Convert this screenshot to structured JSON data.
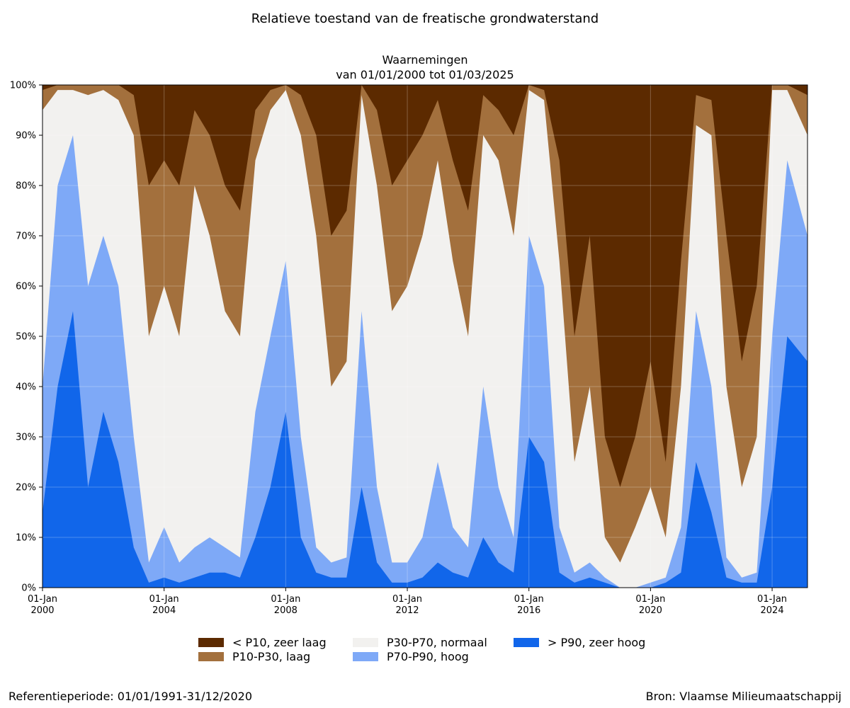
{
  "title": "Relatieve toestand van de freatische grondwaterstand",
  "subtitle_line1": "Waarnemingen",
  "subtitle_line2": "van 01/01/2000 tot 01/03/2025",
  "footer": {
    "reference": "Referentieperiode: 01/01/1991-31/12/2020",
    "source": "Bron: Vlaamse Milieumaatschappij"
  },
  "legend": [
    {
      "label": "< P10, zeer laag",
      "color": "#5c2a00"
    },
    {
      "label": "P10-P30, laag",
      "color": "#a3703d"
    },
    {
      "label": "P30-P70, normaal",
      "color": "#f2f1ef"
    },
    {
      "label": "P70-P90, hoog",
      "color": "#7ea9f7"
    },
    {
      "label": "> P90, zeer hoog",
      "color": "#1166ea"
    }
  ],
  "chart_data": {
    "type": "area",
    "stacked": true,
    "x_range": [
      "2000-01-01",
      "2025-03-01"
    ],
    "ylim": [
      0,
      100
    ],
    "y_unit": "%",
    "y_ticks": [
      "0%",
      "10%",
      "20%",
      "30%",
      "40%",
      "50%",
      "60%",
      "70%",
      "80%",
      "90%",
      "100%"
    ],
    "x_ticks": [
      {
        "date": "2000-01-01",
        "line1": "01-Jan",
        "line2": "2000"
      },
      {
        "date": "2004-01-01",
        "line1": "01-Jan",
        "line2": "2004"
      },
      {
        "date": "2008-01-01",
        "line1": "01-Jan",
        "line2": "2008"
      },
      {
        "date": "2012-01-01",
        "line1": "01-Jan",
        "line2": "2012"
      },
      {
        "date": "2016-01-01",
        "line1": "01-Jan",
        "line2": "2016"
      },
      {
        "date": "2020-01-01",
        "line1": "01-Jan",
        "line2": "2020"
      },
      {
        "date": "2024-01-01",
        "line1": "01-Jan",
        "line2": "2024"
      }
    ],
    "grid": true,
    "legend_position": "bottom",
    "series_order": [
      "> P90, zeer hoog",
      "P70-P90, hoog",
      "P30-P70, normaal",
      "P10-P30, laag",
      "< P10, zeer laag"
    ],
    "cumulative_boundaries_note": "values are cumulative upper boundaries (%) of the '> P90' band, the '> P90'+'P70-P90' band, and the bottom of the 'P10-P30' band and the bottom of the '< P10' band",
    "dates": [
      "2000-01-01",
      "2000-07-01",
      "2001-01-01",
      "2001-07-01",
      "2002-01-01",
      "2002-07-01",
      "2003-01-01",
      "2003-07-01",
      "2004-01-01",
      "2004-07-01",
      "2005-01-01",
      "2005-07-01",
      "2006-01-01",
      "2006-07-01",
      "2007-01-01",
      "2007-07-01",
      "2008-01-01",
      "2008-07-01",
      "2009-01-01",
      "2009-07-01",
      "2010-01-01",
      "2010-07-01",
      "2011-01-01",
      "2011-07-01",
      "2012-01-01",
      "2012-07-01",
      "2013-01-01",
      "2013-07-01",
      "2014-01-01",
      "2014-07-01",
      "2015-01-01",
      "2015-07-01",
      "2016-01-01",
      "2016-07-01",
      "2017-01-01",
      "2017-07-01",
      "2018-01-01",
      "2018-07-01",
      "2019-01-01",
      "2019-07-01",
      "2020-01-01",
      "2020-07-01",
      "2021-01-01",
      "2021-07-01",
      "2022-01-01",
      "2022-07-01",
      "2023-01-01",
      "2023-07-01",
      "2024-01-01",
      "2024-07-01",
      "2025-03-01"
    ],
    "p90_top": [
      15,
      40,
      55,
      20,
      35,
      25,
      8,
      1,
      2,
      1,
      2,
      3,
      3,
      2,
      10,
      20,
      35,
      10,
      3,
      2,
      2,
      20,
      5,
      1,
      1,
      2,
      5,
      3,
      2,
      10,
      5,
      3,
      30,
      25,
      3,
      1,
      2,
      1,
      0,
      0,
      0,
      1,
      3,
      25,
      15,
      2,
      1,
      1,
      20,
      50,
      45
    ],
    "p70_top": [
      40,
      80,
      90,
      60,
      70,
      60,
      30,
      5,
      12,
      5,
      8,
      10,
      8,
      6,
      35,
      50,
      65,
      30,
      8,
      5,
      6,
      55,
      20,
      5,
      5,
      10,
      25,
      12,
      8,
      40,
      20,
      10,
      70,
      60,
      12,
      3,
      5,
      2,
      0,
      0,
      1,
      2,
      12,
      55,
      40,
      6,
      2,
      3,
      50,
      85,
      70
    ],
    "p30_top": [
      95,
      99,
      99,
      98,
      99,
      97,
      90,
      50,
      60,
      50,
      80,
      70,
      55,
      50,
      85,
      95,
      99,
      90,
      70,
      40,
      45,
      98,
      80,
      55,
      60,
      70,
      85,
      65,
      50,
      90,
      85,
      70,
      99,
      97,
      65,
      25,
      40,
      10,
      5,
      12,
      20,
      10,
      40,
      92,
      90,
      40,
      20,
      30,
      99,
      99,
      90
    ],
    "p10_top": [
      99,
      100,
      100,
      100,
      100,
      100,
      98,
      80,
      85,
      80,
      95,
      90,
      80,
      75,
      95,
      99,
      100,
      98,
      90,
      70,
      75,
      100,
      95,
      80,
      85,
      90,
      97,
      85,
      75,
      98,
      95,
      90,
      100,
      99,
      85,
      50,
      70,
      30,
      20,
      30,
      45,
      25,
      65,
      98,
      97,
      70,
      45,
      60,
      100,
      100,
      98
    ]
  }
}
